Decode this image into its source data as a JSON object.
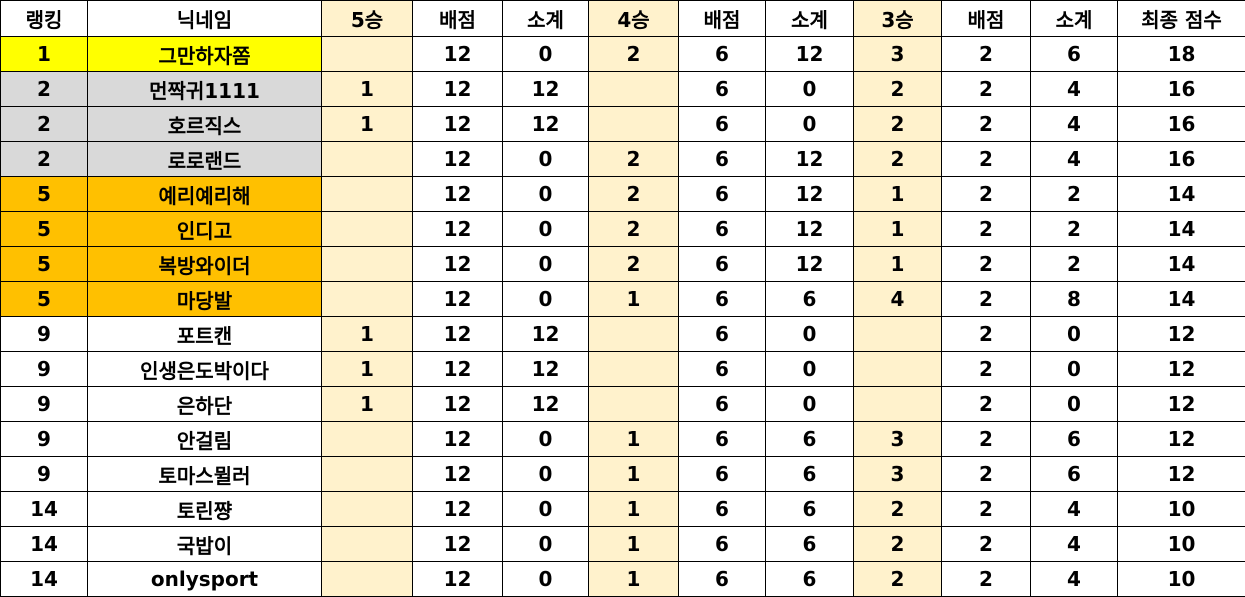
{
  "colors": {
    "gold": "#FFFF00",
    "silver": "#D9D9D9",
    "bronze": "#FFC000",
    "win_column": "#FFF2CC"
  },
  "headers": [
    "랭킹",
    "닉네임",
    "5승",
    "배점",
    "소계",
    "4승",
    "배점",
    "소계",
    "3승",
    "배점",
    "소계",
    "최종 점수"
  ],
  "rows": [
    [
      "1",
      "그만하자쫌",
      "",
      "12",
      "0",
      "2",
      "6",
      "12",
      "3",
      "2",
      "6",
      "18"
    ],
    [
      "2",
      "먼짝귀1111",
      "1",
      "12",
      "12",
      "",
      "6",
      "0",
      "2",
      "2",
      "4",
      "16"
    ],
    [
      "2",
      "호르직스",
      "1",
      "12",
      "12",
      "",
      "6",
      "0",
      "2",
      "2",
      "4",
      "16"
    ],
    [
      "2",
      "로로랜드",
      "",
      "12",
      "0",
      "2",
      "6",
      "12",
      "2",
      "2",
      "4",
      "16"
    ],
    [
      "5",
      "예리예리해",
      "",
      "12",
      "0",
      "2",
      "6",
      "12",
      "1",
      "2",
      "2",
      "14"
    ],
    [
      "5",
      "인디고",
      "",
      "12",
      "0",
      "2",
      "6",
      "12",
      "1",
      "2",
      "2",
      "14"
    ],
    [
      "5",
      "복방와이더",
      "",
      "12",
      "0",
      "2",
      "6",
      "12",
      "1",
      "2",
      "2",
      "14"
    ],
    [
      "5",
      "마당발",
      "",
      "12",
      "0",
      "1",
      "6",
      "6",
      "4",
      "2",
      "8",
      "14"
    ],
    [
      "9",
      "포트캔",
      "1",
      "12",
      "12",
      "",
      "6",
      "0",
      "",
      "2",
      "0",
      "12"
    ],
    [
      "9",
      "인생은도박이다",
      "1",
      "12",
      "12",
      "",
      "6",
      "0",
      "",
      "2",
      "0",
      "12"
    ],
    [
      "9",
      "은하단",
      "1",
      "12",
      "12",
      "",
      "6",
      "0",
      "",
      "2",
      "0",
      "12"
    ],
    [
      "9",
      "안걸림",
      "",
      "12",
      "0",
      "1",
      "6",
      "6",
      "3",
      "2",
      "6",
      "12"
    ],
    [
      "9",
      "토마스뮐러",
      "",
      "12",
      "0",
      "1",
      "6",
      "6",
      "3",
      "2",
      "6",
      "12"
    ],
    [
      "14",
      "토린쨩",
      "",
      "12",
      "0",
      "1",
      "6",
      "6",
      "2",
      "2",
      "4",
      "10"
    ],
    [
      "14",
      "국밥이",
      "",
      "12",
      "0",
      "1",
      "6",
      "6",
      "2",
      "2",
      "4",
      "10"
    ],
    [
      "14",
      "onlysport",
      "",
      "12",
      "0",
      "1",
      "6",
      "6",
      "2",
      "2",
      "4",
      "10"
    ]
  ]
}
